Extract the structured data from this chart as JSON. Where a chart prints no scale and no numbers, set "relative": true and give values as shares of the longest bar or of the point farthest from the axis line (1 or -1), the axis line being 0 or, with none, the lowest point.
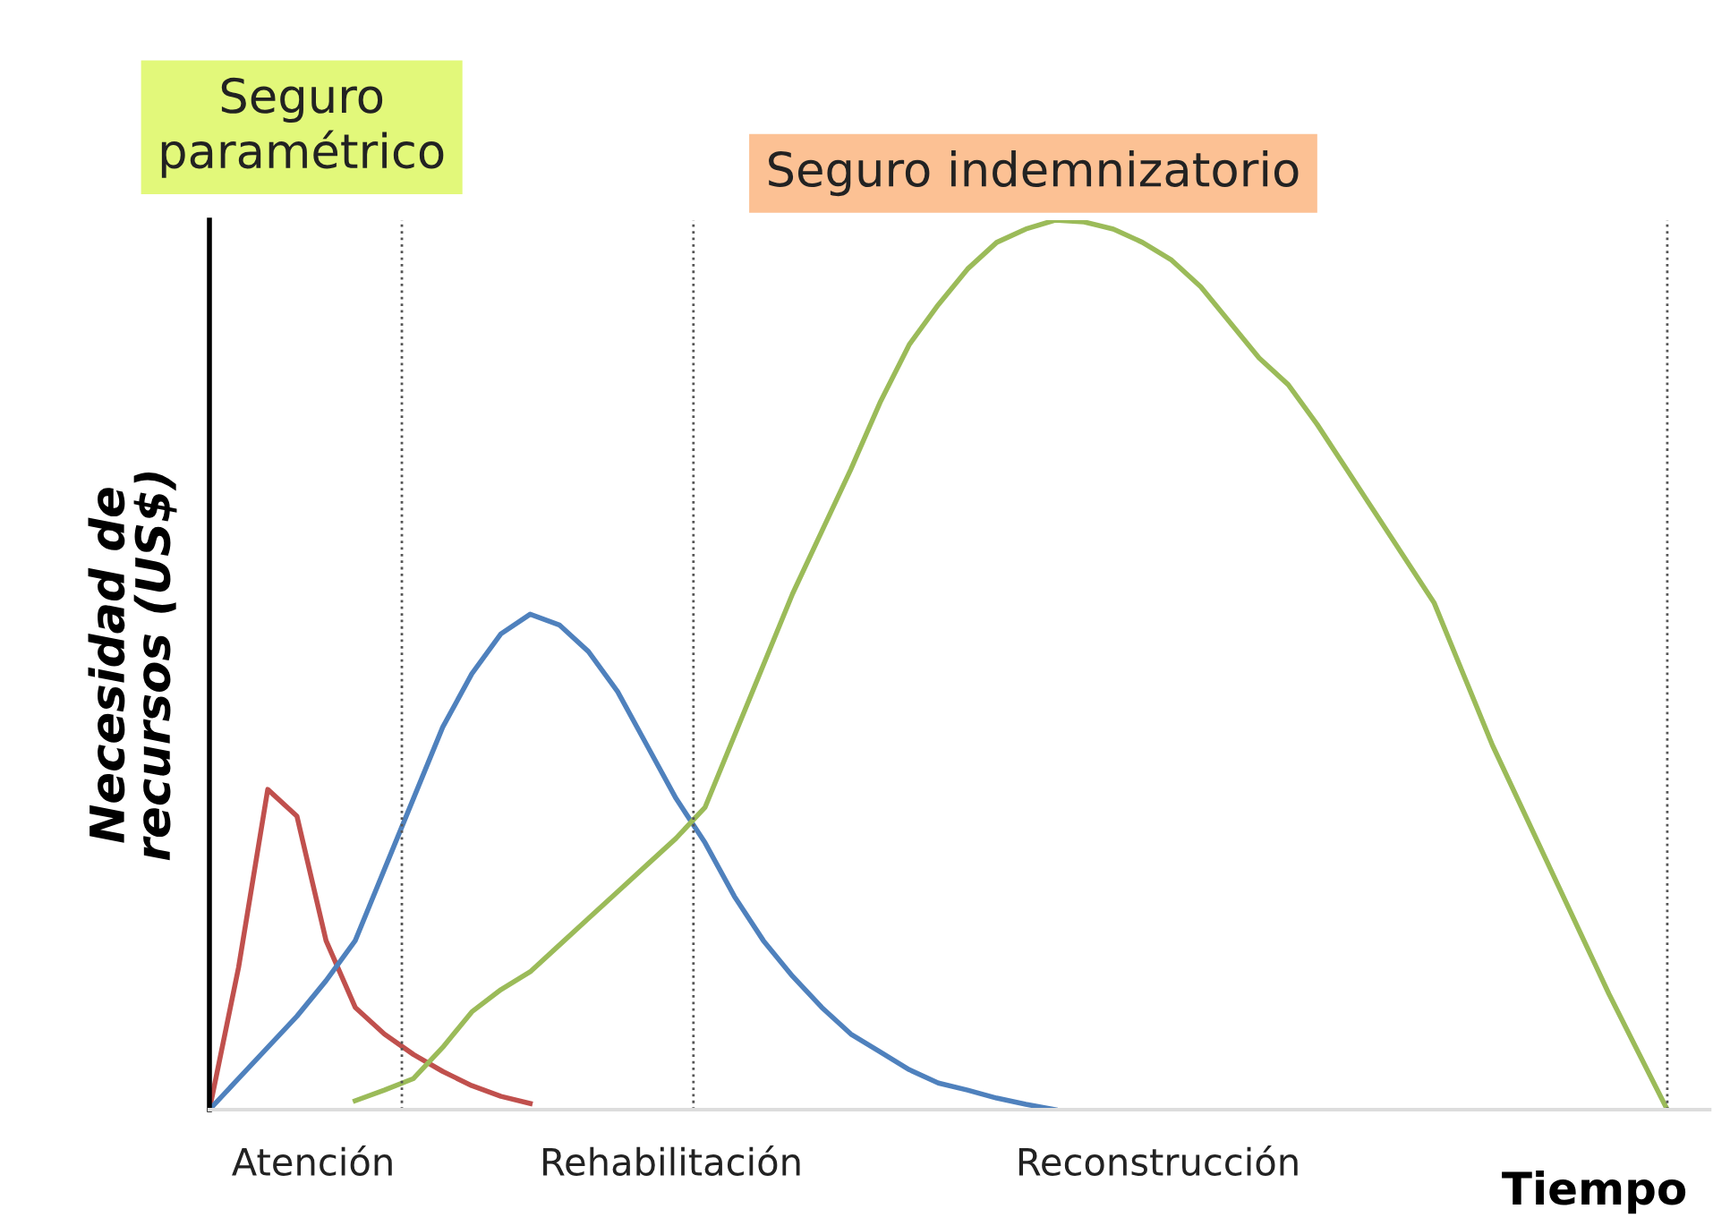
{
  "chart_data": {
    "type": "line",
    "relative": true,
    "xlabel": "Tiempo",
    "ylabel": "Necesidad de\nrecursos (US$)",
    "marker": "none",
    "line_style": "solid",
    "categories": [
      null,
      null,
      null,
      null,
      null,
      null,
      null,
      null,
      null,
      null,
      null,
      null,
      null,
      null,
      null,
      null,
      null,
      null,
      null,
      null,
      null,
      null,
      null,
      null,
      null,
      null,
      null,
      null,
      null,
      null,
      null,
      null,
      null,
      null,
      null,
      null,
      null,
      null,
      null,
      null,
      null,
      null,
      null,
      null,
      null,
      null,
      null,
      null,
      null,
      null,
      null
    ],
    "series": [
      {
        "color": "#c0504d",
        "values": [
          0,
          0.16,
          0.36,
          0.33,
          0.19,
          0.115,
          0.085,
          0.062,
          0.043,
          0.027,
          0.015,
          0.007,
          null,
          null,
          null,
          null,
          null,
          null,
          null,
          null,
          null,
          null,
          null,
          null,
          null,
          null,
          null,
          null,
          null,
          null,
          null,
          null,
          null,
          null,
          null,
          null,
          null,
          null,
          null,
          null,
          null,
          null,
          null,
          null,
          null,
          null,
          null,
          null,
          null,
          null,
          null
        ]
      },
      {
        "color": "#4f81bd",
        "values": [
          0,
          0.035,
          0.07,
          0.105,
          0.145,
          0.19,
          0.27,
          0.35,
          0.43,
          0.49,
          0.535,
          0.557,
          0.545,
          0.515,
          0.47,
          0.41,
          0.35,
          0.3,
          0.24,
          0.19,
          0.15,
          0.115,
          0.085,
          0.065,
          0.045,
          0.03,
          0.022,
          0.013,
          0.006,
          0,
          null,
          null,
          null,
          null,
          null,
          null,
          null,
          null,
          null,
          null,
          null,
          null,
          null,
          null,
          null,
          null,
          null,
          null,
          null,
          null,
          null
        ]
      },
      {
        "color": "#9bbb59",
        "values": [
          null,
          null,
          null,
          null,
          null,
          0.01,
          0.022,
          0.035,
          0.07,
          0.11,
          0.135,
          0.155,
          0.185,
          0.215,
          0.245,
          0.275,
          0.305,
          0.34,
          0.42,
          0.5,
          0.58,
          0.65,
          0.72,
          0.795,
          0.86,
          0.905,
          0.945,
          0.975,
          0.99,
          1.0,
          0.998,
          0.99,
          0.975,
          0.955,
          0.925,
          0.885,
          0.845,
          0.815,
          0.77,
          0.72,
          0.67,
          0.62,
          0.57,
          0.49,
          0.41,
          0.34,
          0.27,
          0.2,
          0.13,
          0.065,
          0
        ]
      }
    ],
    "annotations": [
      "Atención",
      "Rehabilitación",
      "Reconstrucción",
      "Seguro\nparamétrico",
      "Seguro indemnizatorio"
    ]
  }
}
